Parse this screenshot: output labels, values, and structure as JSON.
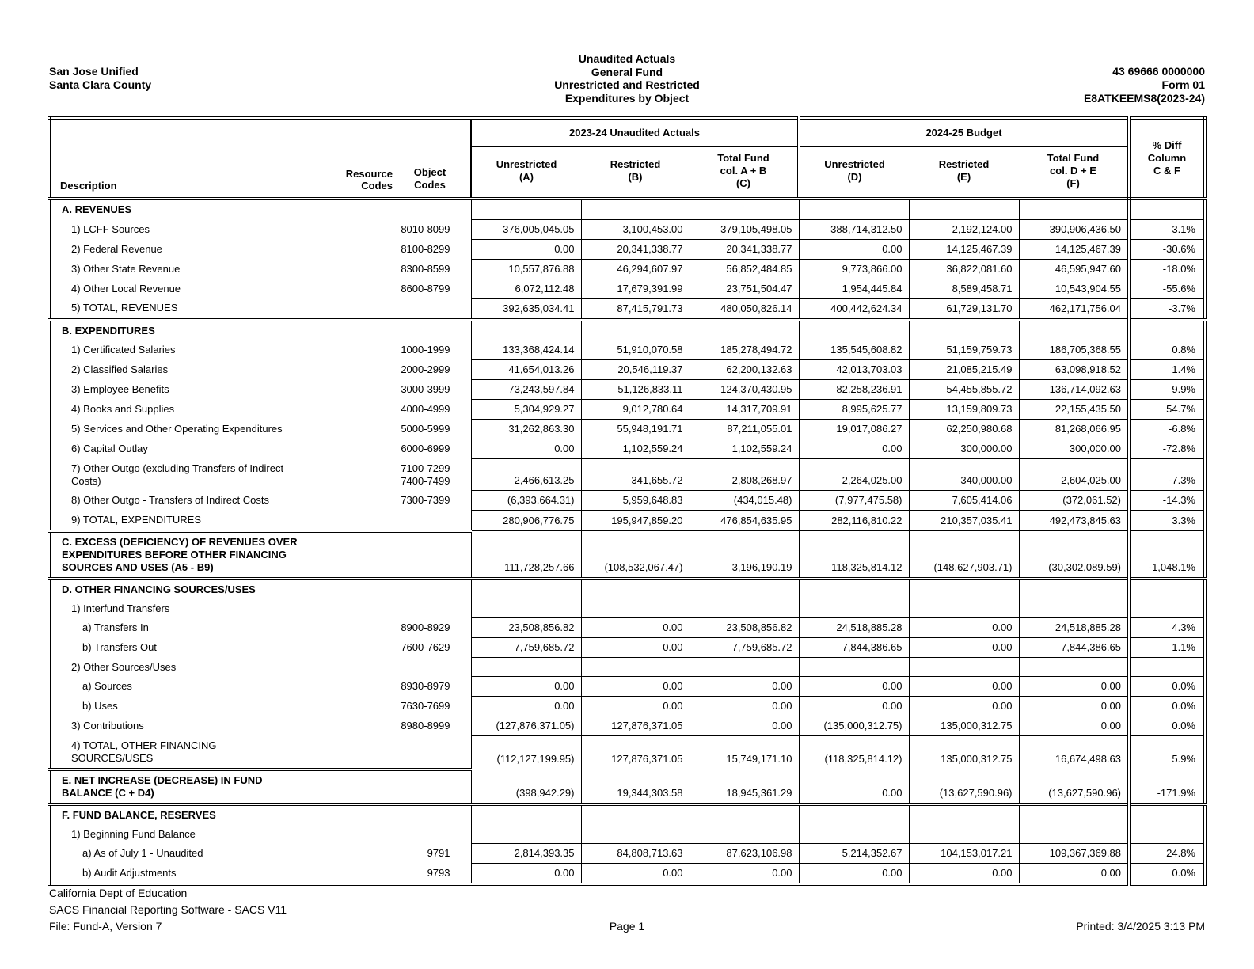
{
  "header": {
    "agency": "San Jose Unified",
    "county": "Santa Clara County",
    "title_lines": [
      "Unaudited Actuals",
      "General Fund",
      "Unrestricted and Restricted",
      "Expenditures by Object"
    ],
    "cds_code": "43 69666 0000000",
    "form": "Form 01",
    "doc_id": "E8ATKEEMS8(2023-24)"
  },
  "table": {
    "column_headers": {
      "description": "Description",
      "resource_codes": "Resource Codes",
      "object_codes": "Object\nCodes",
      "group1": "2023-24 Unaudited Actuals",
      "group2": "2024-25 Budget",
      "col_a": "Unrestricted\n(A)",
      "col_b": "Restricted\n(B)",
      "col_c": "Total Fund\ncol. A + B\n(C)",
      "col_d": "Unrestricted\n(D)",
      "col_e": "Restricted\n(E)",
      "col_f": "Total Fund\ncol. D + E\n(F)",
      "pct_diff": "% Diff\nColumn\nC & F"
    },
    "rows": [
      {
        "label": "A. REVENUES",
        "indent": 0,
        "bold": true,
        "values": []
      },
      {
        "label": "1) LCFF Sources",
        "indent": 1,
        "object": "8010-8099",
        "values": [
          "376,005,045.05",
          "3,100,453.00",
          "379,105,498.05",
          "388,714,312.50",
          "2,192,124.00",
          "390,906,436.50",
          "3.1%"
        ]
      },
      {
        "label": "2) Federal Revenue",
        "indent": 1,
        "object": "8100-8299",
        "values": [
          "0.00",
          "20,341,338.77",
          "20,341,338.77",
          "0.00",
          "14,125,467.39",
          "14,125,467.39",
          "-30.6%"
        ]
      },
      {
        "label": "3) Other State Revenue",
        "indent": 1,
        "object": "8300-8599",
        "values": [
          "10,557,876.88",
          "46,294,607.97",
          "56,852,484.85",
          "9,773,866.00",
          "36,822,081.60",
          "46,595,947.60",
          "-18.0%"
        ]
      },
      {
        "label": "4) Other Local Revenue",
        "indent": 1,
        "object": "8600-8799",
        "values": [
          "6,072,112.48",
          "17,679,391.99",
          "23,751,504.47",
          "1,954,445.84",
          "8,589,458.71",
          "10,543,904.55",
          "-55.6%"
        ]
      },
      {
        "label": "5) TOTAL, REVENUES",
        "indent": 1,
        "values": [
          "392,635,034.41",
          "87,415,791.73",
          "480,050,826.14",
          "400,442,624.34",
          "61,729,131.70",
          "462,171,756.04",
          "-3.7%"
        ]
      },
      {
        "label": "B. EXPENDITURES",
        "indent": 0,
        "bold": true,
        "section_start": true,
        "values": []
      },
      {
        "label": "1) Certificated Salaries",
        "indent": 1,
        "object": "1000-1999",
        "values": [
          "133,368,424.14",
          "51,910,070.58",
          "185,278,494.72",
          "135,545,608.82",
          "51,159,759.73",
          "186,705,368.55",
          "0.8%"
        ]
      },
      {
        "label": "2) Classified Salaries",
        "indent": 1,
        "object": "2000-2999",
        "values": [
          "41,654,013.26",
          "20,546,119.37",
          "62,200,132.63",
          "42,013,703.03",
          "21,085,215.49",
          "63,098,918.52",
          "1.4%"
        ]
      },
      {
        "label": "3) Employee Benefits",
        "indent": 1,
        "object": "3000-3999",
        "values": [
          "73,243,597.84",
          "51,126,833.11",
          "124,370,430.95",
          "82,258,236.91",
          "54,455,855.72",
          "136,714,092.63",
          "9.9%"
        ]
      },
      {
        "label": "4) Books and Supplies",
        "indent": 1,
        "object": "4000-4999",
        "values": [
          "5,304,929.27",
          "9,012,780.64",
          "14,317,709.91",
          "8,995,625.77",
          "13,159,809.73",
          "22,155,435.50",
          "54.7%"
        ]
      },
      {
        "label": "5) Services and Other Operating Expenditures",
        "indent": 1,
        "object": "5000-5999",
        "values": [
          "31,262,863.30",
          "55,948,191.71",
          "87,211,055.01",
          "19,017,086.27",
          "62,250,980.68",
          "81,268,066.95",
          "-6.8%"
        ]
      },
      {
        "label": "6) Capital Outlay",
        "indent": 1,
        "object": "6000-6999",
        "values": [
          "0.00",
          "1,102,559.24",
          "1,102,559.24",
          "0.00",
          "300,000.00",
          "300,000.00",
          "-72.8%"
        ]
      },
      {
        "label": "7) Other Outgo (excluding Transfers of Indirect\nCosts)",
        "indent": 1,
        "object": "7100-7299\n7400-7499",
        "values": [
          "2,466,613.25",
          "341,655.72",
          "2,808,268.97",
          "2,264,025.00",
          "340,000.00",
          "2,604,025.00",
          "-7.3%"
        ]
      },
      {
        "label": "8) Other Outgo - Transfers of Indirect Costs",
        "indent": 1,
        "object": "7300-7399",
        "values": [
          "(6,393,664.31)",
          "5,959,648.83",
          "(434,015.48)",
          "(7,977,475.58)",
          "7,605,414.06",
          "(372,061.52)",
          "-14.3%"
        ]
      },
      {
        "label": "9) TOTAL, EXPENDITURES",
        "indent": 1,
        "values": [
          "280,906,776.75",
          "195,947,859.20",
          "476,854,635.95",
          "282,116,810.22",
          "210,357,035.41",
          "492,473,845.63",
          "3.3%"
        ]
      },
      {
        "label": "C. EXCESS (DEFICIENCY) OF REVENUES OVER\nEXPENDITURES BEFORE OTHER FINANCING\nSOURCES AND USES (A5 - B9)",
        "indent": 0,
        "bold": true,
        "section_start": true,
        "values": [
          "111,728,257.66",
          "(108,532,067.47)",
          "3,196,190.19",
          "118,325,814.12",
          "(148,627,903.71)",
          "(30,302,089.59)",
          "-1,048.1%"
        ]
      },
      {
        "label": "D. OTHER FINANCING SOURCES/USES",
        "indent": 0,
        "bold": true,
        "section_start": true,
        "values": []
      },
      {
        "label": "1) Interfund Transfers",
        "indent": 1,
        "values": []
      },
      {
        "label": "a) Transfers In",
        "indent": 2,
        "object": "8900-8929",
        "values": [
          "23,508,856.82",
          "0.00",
          "23,508,856.82",
          "24,518,885.28",
          "0.00",
          "24,518,885.28",
          "4.3%"
        ]
      },
      {
        "label": "b) Transfers Out",
        "indent": 2,
        "object": "7600-7629",
        "values": [
          "7,759,685.72",
          "0.00",
          "7,759,685.72",
          "7,844,386.65",
          "0.00",
          "7,844,386.65",
          "1.1%"
        ]
      },
      {
        "label": "2) Other Sources/Uses",
        "indent": 1,
        "values": []
      },
      {
        "label": "a) Sources",
        "indent": 2,
        "object": "8930-8979",
        "values": [
          "0.00",
          "0.00",
          "0.00",
          "0.00",
          "0.00",
          "0.00",
          "0.0%"
        ]
      },
      {
        "label": "b) Uses",
        "indent": 2,
        "object": "7630-7699",
        "values": [
          "0.00",
          "0.00",
          "0.00",
          "0.00",
          "0.00",
          "0.00",
          "0.0%"
        ]
      },
      {
        "label": "3) Contributions",
        "indent": 1,
        "object": "8980-8999",
        "values": [
          "(127,876,371.05)",
          "127,876,371.05",
          "0.00",
          "(135,000,312.75)",
          "135,000,312.75",
          "0.00",
          "0.0%"
        ]
      },
      {
        "label": "4) TOTAL, OTHER FINANCING\nSOURCES/USES",
        "indent": 1,
        "values": [
          "(112,127,199.95)",
          "127,876,371.05",
          "15,749,171.10",
          "(118,325,814.12)",
          "135,000,312.75",
          "16,674,498.63",
          "5.9%"
        ]
      },
      {
        "label": "E. NET INCREASE (DECREASE) IN FUND\nBALANCE (C + D4)",
        "indent": 0,
        "bold": true,
        "section_start": true,
        "values": [
          "(398,942.29)",
          "19,344,303.58",
          "18,945,361.29",
          "0.00",
          "(13,627,590.96)",
          "(13,627,590.96)",
          "-171.9%"
        ]
      },
      {
        "label": "F. FUND BALANCE, RESERVES",
        "indent": 0,
        "bold": true,
        "section_start": true,
        "values": []
      },
      {
        "label": "1) Beginning Fund Balance",
        "indent": 1,
        "values": []
      },
      {
        "label": "a) As of July 1 - Unaudited",
        "indent": 2,
        "object": "9791",
        "values": [
          "2,814,393.35",
          "84,808,713.63",
          "87,623,106.98",
          "5,214,352.67",
          "104,153,017.21",
          "109,367,369.88",
          "24.8%"
        ]
      },
      {
        "label": "b) Audit Adjustments",
        "indent": 2,
        "object": "9793",
        "values": [
          "0.00",
          "0.00",
          "0.00",
          "0.00",
          "0.00",
          "0.00",
          "0.0%"
        ]
      }
    ]
  },
  "footer": {
    "line1": "California Dept of Education",
    "line2": "SACS Financial Reporting Software - SACS V11",
    "line3": "File: Fund-A, Version 7",
    "page": "Page 1",
    "printed": "Printed: 3/4/2025 3:13 PM"
  }
}
